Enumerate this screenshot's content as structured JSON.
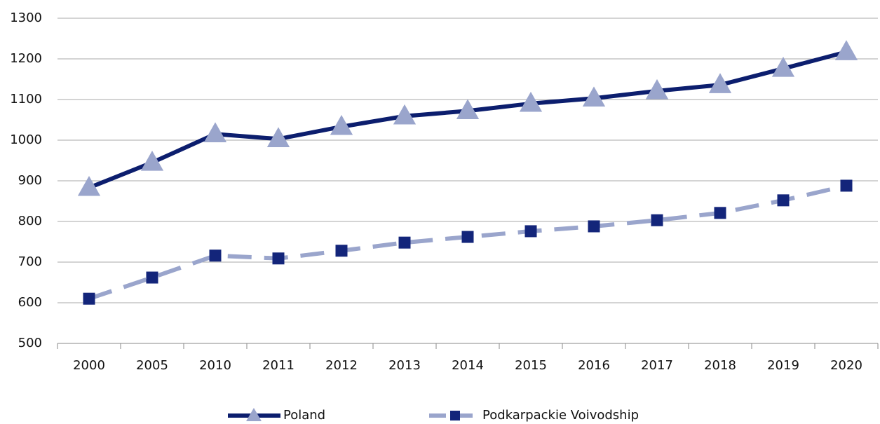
{
  "chart_data": {
    "type": "line",
    "categories": [
      "2000",
      "2005",
      "2010",
      "2011",
      "2012",
      "2013",
      "2014",
      "2015",
      "2016",
      "2017",
      "2018",
      "2019",
      "2020"
    ],
    "series": [
      {
        "name": "Poland",
        "color": "#0c1e6e",
        "marker_color": "#9aa5cc",
        "marker": "triangle",
        "dashed": false,
        "values": [
          883,
          945,
          1015,
          1003,
          1033,
          1059,
          1072,
          1090,
          1103,
          1121,
          1136,
          1176,
          1217
        ]
      },
      {
        "name": "Podkarpackie Voivodship",
        "color": "#9aa5cc",
        "marker_color": "#13257a",
        "marker": "square",
        "dashed": true,
        "values": [
          610,
          662,
          716,
          709,
          728,
          748,
          762,
          776,
          788,
          803,
          821,
          852,
          888
        ]
      }
    ],
    "ylim": [
      500,
      1300
    ],
    "yticks": [
      500,
      600,
      700,
      800,
      900,
      1000,
      1100,
      1200,
      1300
    ],
    "grid": true,
    "legend": "bottom"
  }
}
